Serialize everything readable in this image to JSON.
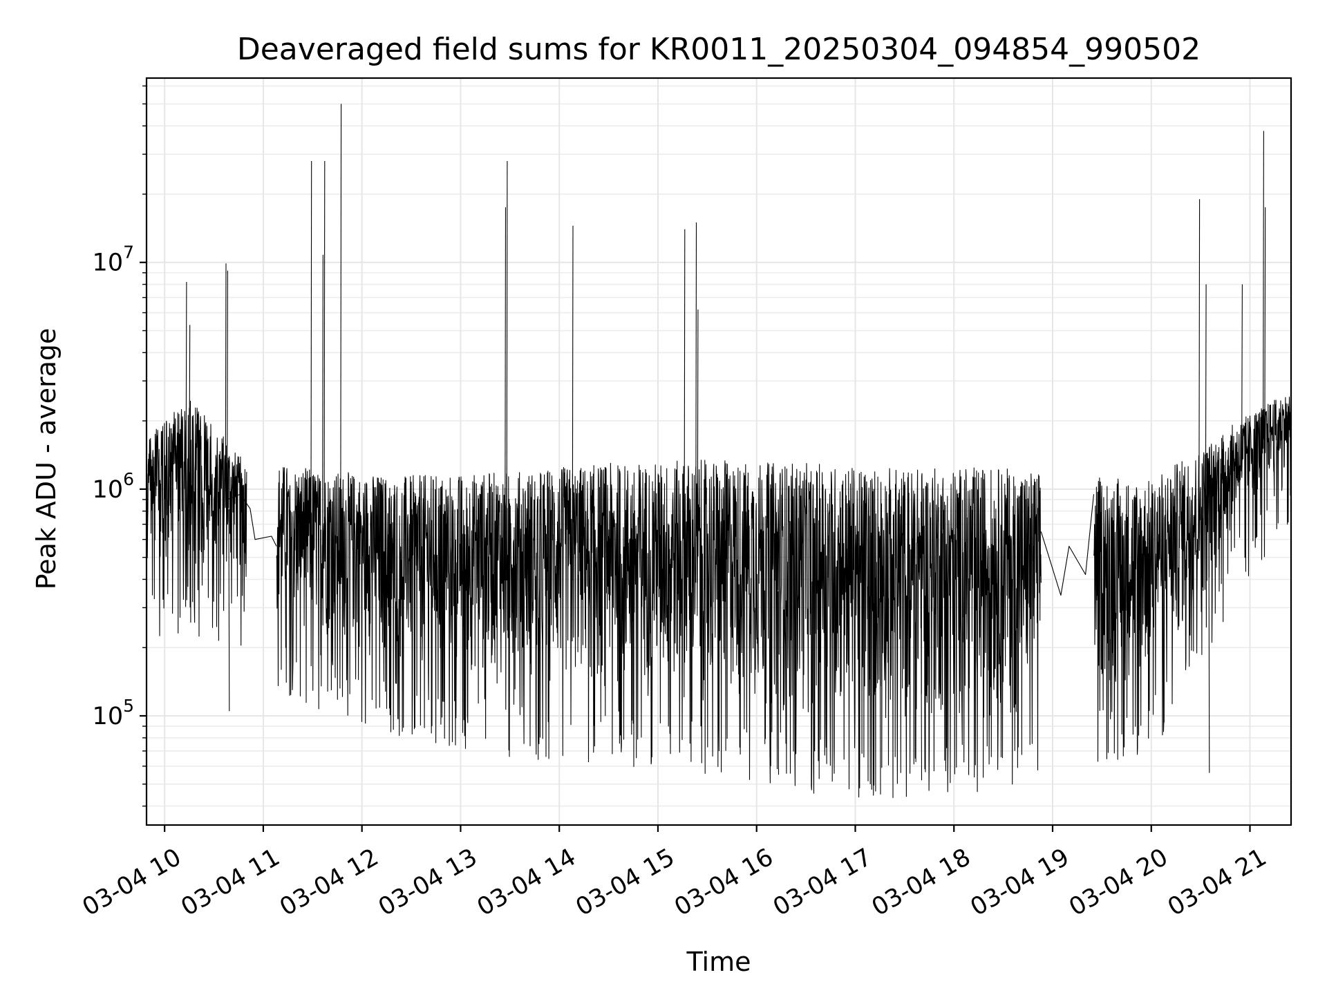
{
  "chart_data": {
    "type": "line",
    "title": "Deaveraged field sums for KR0011_20250304_094854_990502",
    "xlabel": "Time",
    "ylabel": "Peak ADU - average",
    "yscale": "log",
    "ylim": [
      33000,
      65000000
    ],
    "xlim": [
      "2025-03-04 09:49",
      "2025-03-04 21:25"
    ],
    "grid": true,
    "x_ticks": [
      "03-04 10",
      "03-04 11",
      "03-04 12",
      "03-04 13",
      "03-04 14",
      "03-04 15",
      "03-04 16",
      "03-04 17",
      "03-04 18",
      "03-04 19",
      "03-04 20",
      "03-04 21"
    ],
    "y_ticks": [
      {
        "value": 100000,
        "base": "10",
        "exp": "5"
      },
      {
        "value": 1000000,
        "base": "10",
        "exp": "6"
      },
      {
        "value": 10000000,
        "base": "10",
        "exp": "7"
      }
    ],
    "series": [
      {
        "color": "#000000",
        "band": {
          "description_points": [
            [
              "2025-03-04 09:49",
              380000,
              1700000
            ],
            [
              "2025-03-04 10:15",
              450000,
              2500000
            ],
            [
              "2025-03-04 10:45",
              400000,
              1400000
            ],
            [
              "2025-03-04 11:10",
              250000,
              1300000
            ],
            [
              "2025-03-04 11:40",
              200000,
              1200000
            ],
            [
              "2025-03-04 12:30",
              150000,
              1150000
            ],
            [
              "2025-03-04 13:30",
              130000,
              1200000
            ],
            [
              "2025-03-04 14:30",
              120000,
              1300000
            ],
            [
              "2025-03-04 15:30",
              110000,
              1350000
            ],
            [
              "2025-03-04 16:30",
              90000,
              1300000
            ],
            [
              "2025-03-04 17:30",
              85000,
              1250000
            ],
            [
              "2025-03-04 18:30",
              90000,
              1250000
            ],
            [
              "2025-03-04 18:52",
              100000,
              1200000
            ],
            [
              "2025-03-04 19:15",
              120000,
              1150000
            ],
            [
              "2025-03-04 20:00",
              130000,
              1100000
            ],
            [
              "2025-03-04 20:30",
              250000,
              1500000
            ],
            [
              "2025-03-04 21:25",
              1300000,
              2700000
            ]
          ]
        },
        "gaps": [
          [
            "2025-03-04 10:50",
            "2025-03-04 11:08"
          ],
          [
            "2025-03-04 18:53",
            "2025-03-04 19:25"
          ]
        ],
        "gap_links": [
          [
            [
              "2025-03-04 10:38",
              900000
            ],
            [
              "2025-03-04 10:46",
              950000
            ],
            [
              "2025-03-04 10:52",
              820000
            ],
            [
              "2025-03-04 10:55",
              600000
            ],
            [
              "2025-03-04 11:05",
              620000
            ],
            [
              "2025-03-04 11:08",
              560000
            ]
          ],
          [
            [
              "2025-03-04 18:53",
              650000
            ],
            [
              "2025-03-04 19:05",
              340000
            ],
            [
              "2025-03-04 19:10",
              560000
            ],
            [
              "2025-03-04 19:20",
              420000
            ],
            [
              "2025-03-04 19:25",
              950000
            ]
          ]
        ],
        "spikes": [
          [
            "2025-03-04 10:13",
            8200000
          ],
          [
            "2025-03-04 10:15",
            5300000
          ],
          [
            "2025-03-04 10:37",
            9900000
          ],
          [
            "2025-03-04 10:38",
            9200000
          ],
          [
            "2025-03-04 10:39",
            105000
          ],
          [
            "2025-03-04 11:29",
            28000000
          ],
          [
            "2025-03-04 11:36",
            10800000
          ],
          [
            "2025-03-04 11:37",
            28000000
          ],
          [
            "2025-03-04 11:47",
            50000000
          ],
          [
            "2025-03-04 13:27",
            17500000
          ],
          [
            "2025-03-04 13:28",
            28000000
          ],
          [
            "2025-03-04 14:08",
            14500000
          ],
          [
            "2025-03-04 15:16",
            14000000
          ],
          [
            "2025-03-04 15:23",
            15000000
          ],
          [
            "2025-03-04 15:24",
            6200000
          ],
          [
            "2025-03-04 16:13",
            55000
          ],
          [
            "2025-03-04 17:15",
            45000
          ],
          [
            "2025-03-04 17:40",
            52000
          ],
          [
            "2025-03-04 20:29",
            19000000
          ],
          [
            "2025-03-04 20:33",
            8000000
          ],
          [
            "2025-03-04 20:35",
            56000
          ],
          [
            "2025-03-04 20:55",
            8000000
          ],
          [
            "2025-03-04 21:08",
            38000000
          ],
          [
            "2025-03-04 21:09",
            17500000
          ]
        ]
      }
    ]
  }
}
